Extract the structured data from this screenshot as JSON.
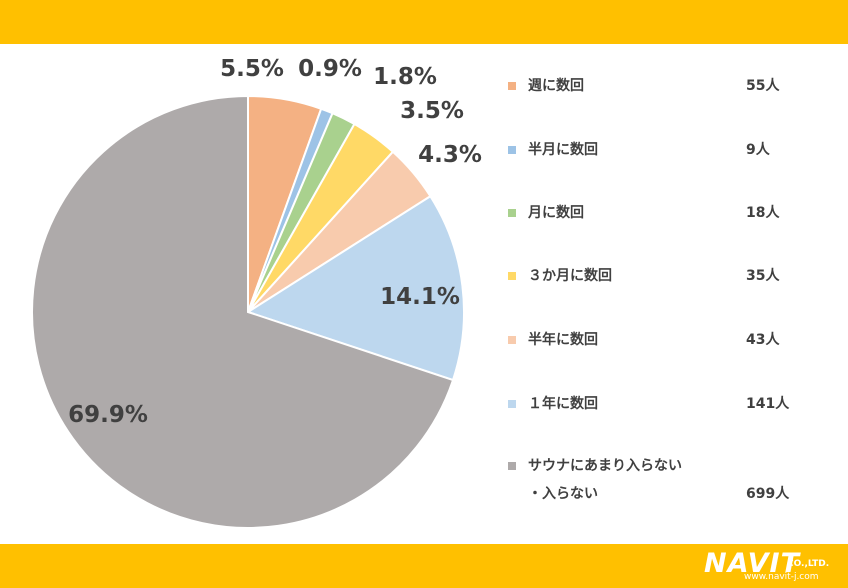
{
  "chart_data": {
    "type": "pie",
    "slices": [
      {
        "label": "週に数回",
        "count_label": "55人",
        "value": 5.5,
        "pct_label": "5.5%",
        "color": "#f4b183"
      },
      {
        "label": "半月に数回",
        "count_label": "9人",
        "value": 0.9,
        "pct_label": "0.9%",
        "color": "#9dc3e6"
      },
      {
        "label": "月に数回",
        "count_label": "18人",
        "value": 1.8,
        "pct_label": "1.8%",
        "color": "#a9d18e"
      },
      {
        "label": "３か月に数回",
        "count_label": "35人",
        "value": 3.5,
        "pct_label": "3.5%",
        "color": "#ffd966"
      },
      {
        "label": "半年に数回",
        "count_label": "43人",
        "value": 4.3,
        "pct_label": "4.3%",
        "color": "#f8cbad"
      },
      {
        "label": "１年に数回",
        "count_label": "141人",
        "value": 14.1,
        "pct_label": "14.1%",
        "color": "#bdd7ee"
      },
      {
        "label": "サウナにあまり入らない",
        "label_line2": "・入らない",
        "count_label": "699人",
        "value": 69.9,
        "pct_label": "69.9%",
        "color": "#aeaaaa"
      }
    ],
    "start": "12 o'clock",
    "direction": "clockwise",
    "legend_position": "right"
  },
  "branding": {
    "logo_word": "NAVIT",
    "logo_co": "CO.,LTD.",
    "logo_url": "www.navit-j.com",
    "band_color": "#ffc000"
  }
}
